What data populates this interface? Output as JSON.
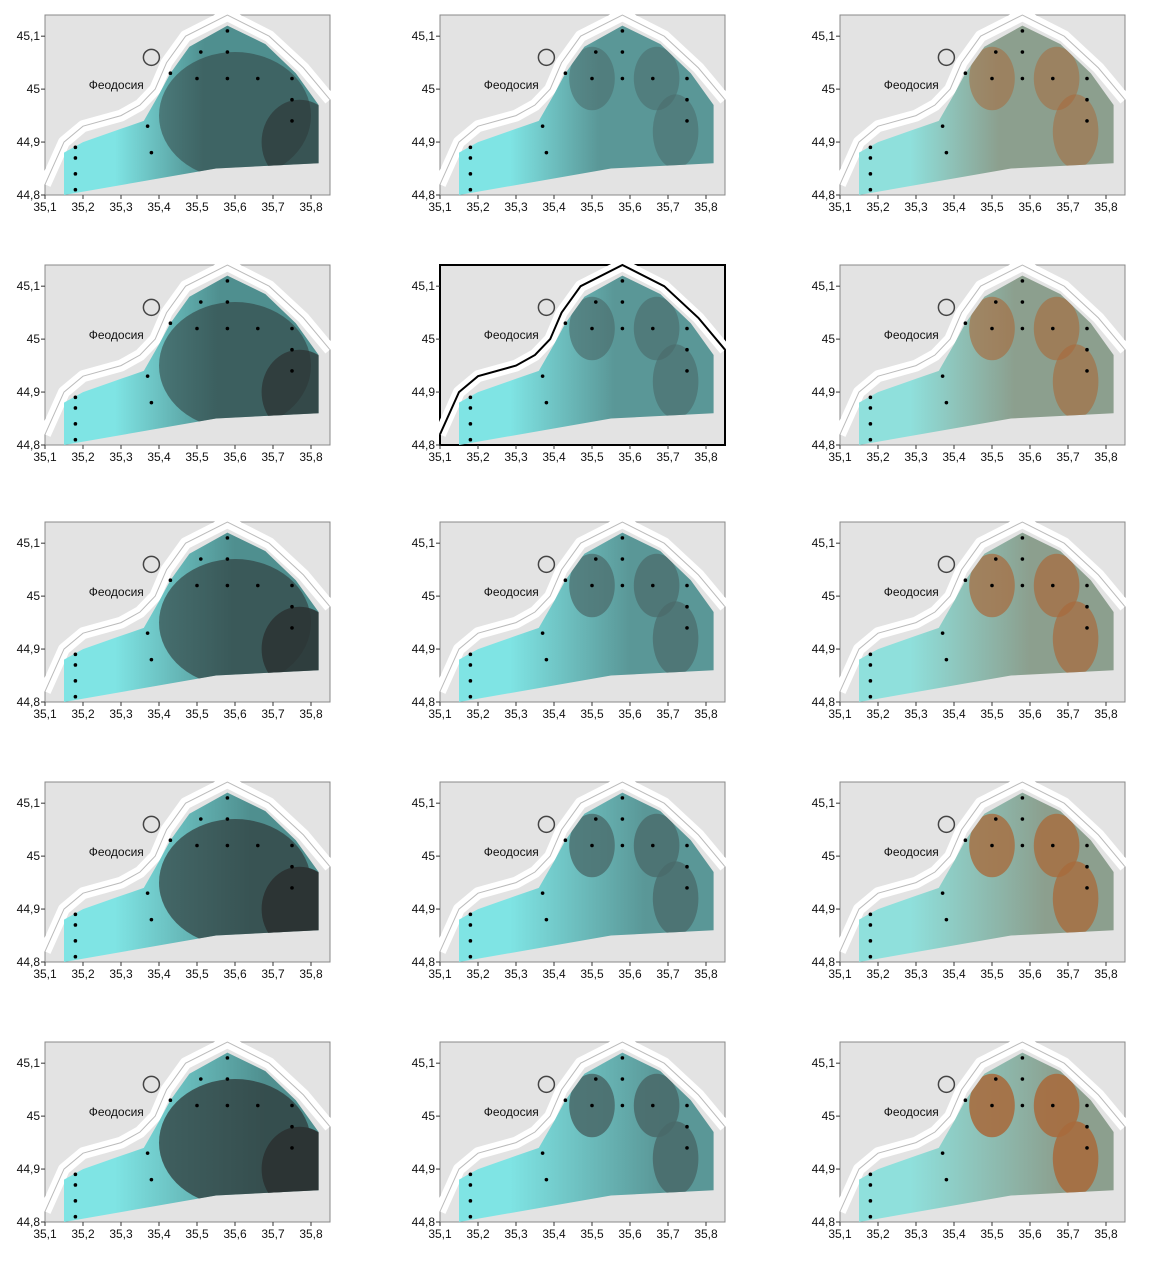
{
  "city_label": "Феодосия",
  "axes": {
    "xticks": [
      "35,1",
      "35,2",
      "35,3",
      "35,4",
      "35,5",
      "35,6",
      "35,7",
      "35,8"
    ],
    "yticks": [
      "44,8",
      "44,9",
      "45",
      "45,1"
    ]
  }
}
